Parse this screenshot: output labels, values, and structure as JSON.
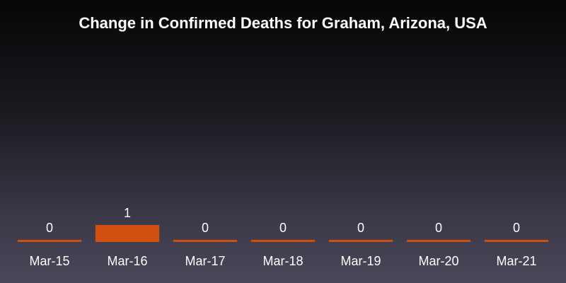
{
  "chart_data": {
    "type": "bar",
    "title": "Change in Confirmed Deaths for Graham, Arizona, USA",
    "categories": [
      "Mar-15",
      "Mar-16",
      "Mar-17",
      "Mar-18",
      "Mar-19",
      "Mar-20",
      "Mar-21"
    ],
    "values": [
      0,
      1,
      0,
      0,
      0,
      0,
      0
    ],
    "xlabel": "",
    "ylabel": "",
    "grid": false,
    "bar_color": "#d0500f"
  }
}
